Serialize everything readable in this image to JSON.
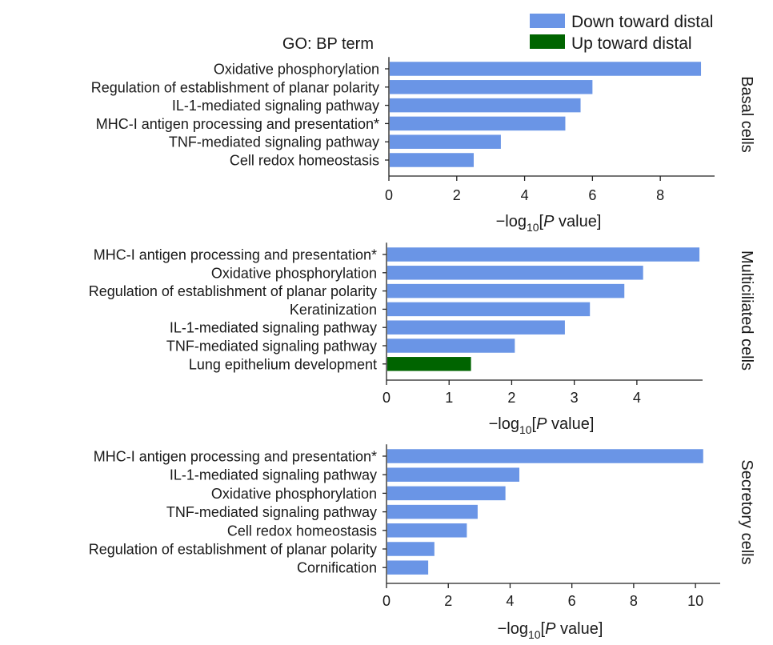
{
  "header": {
    "go_label": "GO: BP term"
  },
  "legend": {
    "items": [
      {
        "key": "down",
        "label": "Down toward distal",
        "color": "#6a95e6"
      },
      {
        "key": "up",
        "label": "Up toward distal",
        "color": "#006400"
      }
    ]
  },
  "chart_data": [
    {
      "type": "bar",
      "orientation": "horizontal",
      "title": "Basal cells",
      "xlabel_prefix": "−log",
      "xlabel_sub": "10",
      "xlabel_open": "[",
      "xlabel_italic": "P",
      "xlabel_suffix": " value]",
      "xlim": [
        0,
        9.6
      ],
      "xticks": [
        0,
        2,
        4,
        6,
        8
      ],
      "categories": [
        "Oxidative phosphorylation",
        "Regulation of establishment of planar polarity",
        "IL-1-mediated signaling pathway",
        "MHC-I antigen processing and presentation*",
        "TNF-mediated signaling pathway",
        "Cell redox homeostasis"
      ],
      "values": [
        9.2,
        6.0,
        5.65,
        5.2,
        3.3,
        2.5
      ],
      "direction": [
        "down",
        "down",
        "down",
        "down",
        "down",
        "down"
      ]
    },
    {
      "type": "bar",
      "orientation": "horizontal",
      "title": "Multiciliated cells",
      "xlabel_prefix": "−log",
      "xlabel_sub": "10",
      "xlabel_open": "[",
      "xlabel_italic": "P",
      "xlabel_suffix": " value]",
      "xlim": [
        0,
        5.05
      ],
      "xticks": [
        0,
        1,
        2,
        3,
        4
      ],
      "categories": [
        "MHC-I antigen processing and presentation*",
        "Oxidative phosphorylation",
        "Regulation of establishment of planar polarity",
        "Keratinization",
        "IL-1-mediated signaling pathway",
        "TNF-mediated signaling pathway",
        "Lung epithelium development"
      ],
      "values": [
        5.0,
        4.1,
        3.8,
        3.25,
        2.85,
        2.05,
        1.35
      ],
      "direction": [
        "down",
        "down",
        "down",
        "down",
        "down",
        "down",
        "up"
      ]
    },
    {
      "type": "bar",
      "orientation": "horizontal",
      "title": "Secretory cells",
      "xlabel_prefix": "−log",
      "xlabel_sub": "10",
      "xlabel_open": "[",
      "xlabel_italic": "P",
      "xlabel_suffix": " value]",
      "xlim": [
        0,
        10.8
      ],
      "xticks": [
        0,
        2,
        4,
        6,
        8,
        10
      ],
      "categories": [
        "MHC-I antigen processing and presentation*",
        "IL-1-mediated signaling pathway",
        "Oxidative phosphorylation",
        "TNF-mediated signaling pathway",
        "Cell redox homeostasis",
        "Regulation of establishment of planar polarity",
        "Cornification"
      ],
      "values": [
        10.25,
        4.3,
        3.85,
        2.95,
        2.6,
        1.55,
        1.35
      ],
      "direction": [
        "down",
        "down",
        "down",
        "down",
        "down",
        "down",
        "down"
      ]
    }
  ]
}
